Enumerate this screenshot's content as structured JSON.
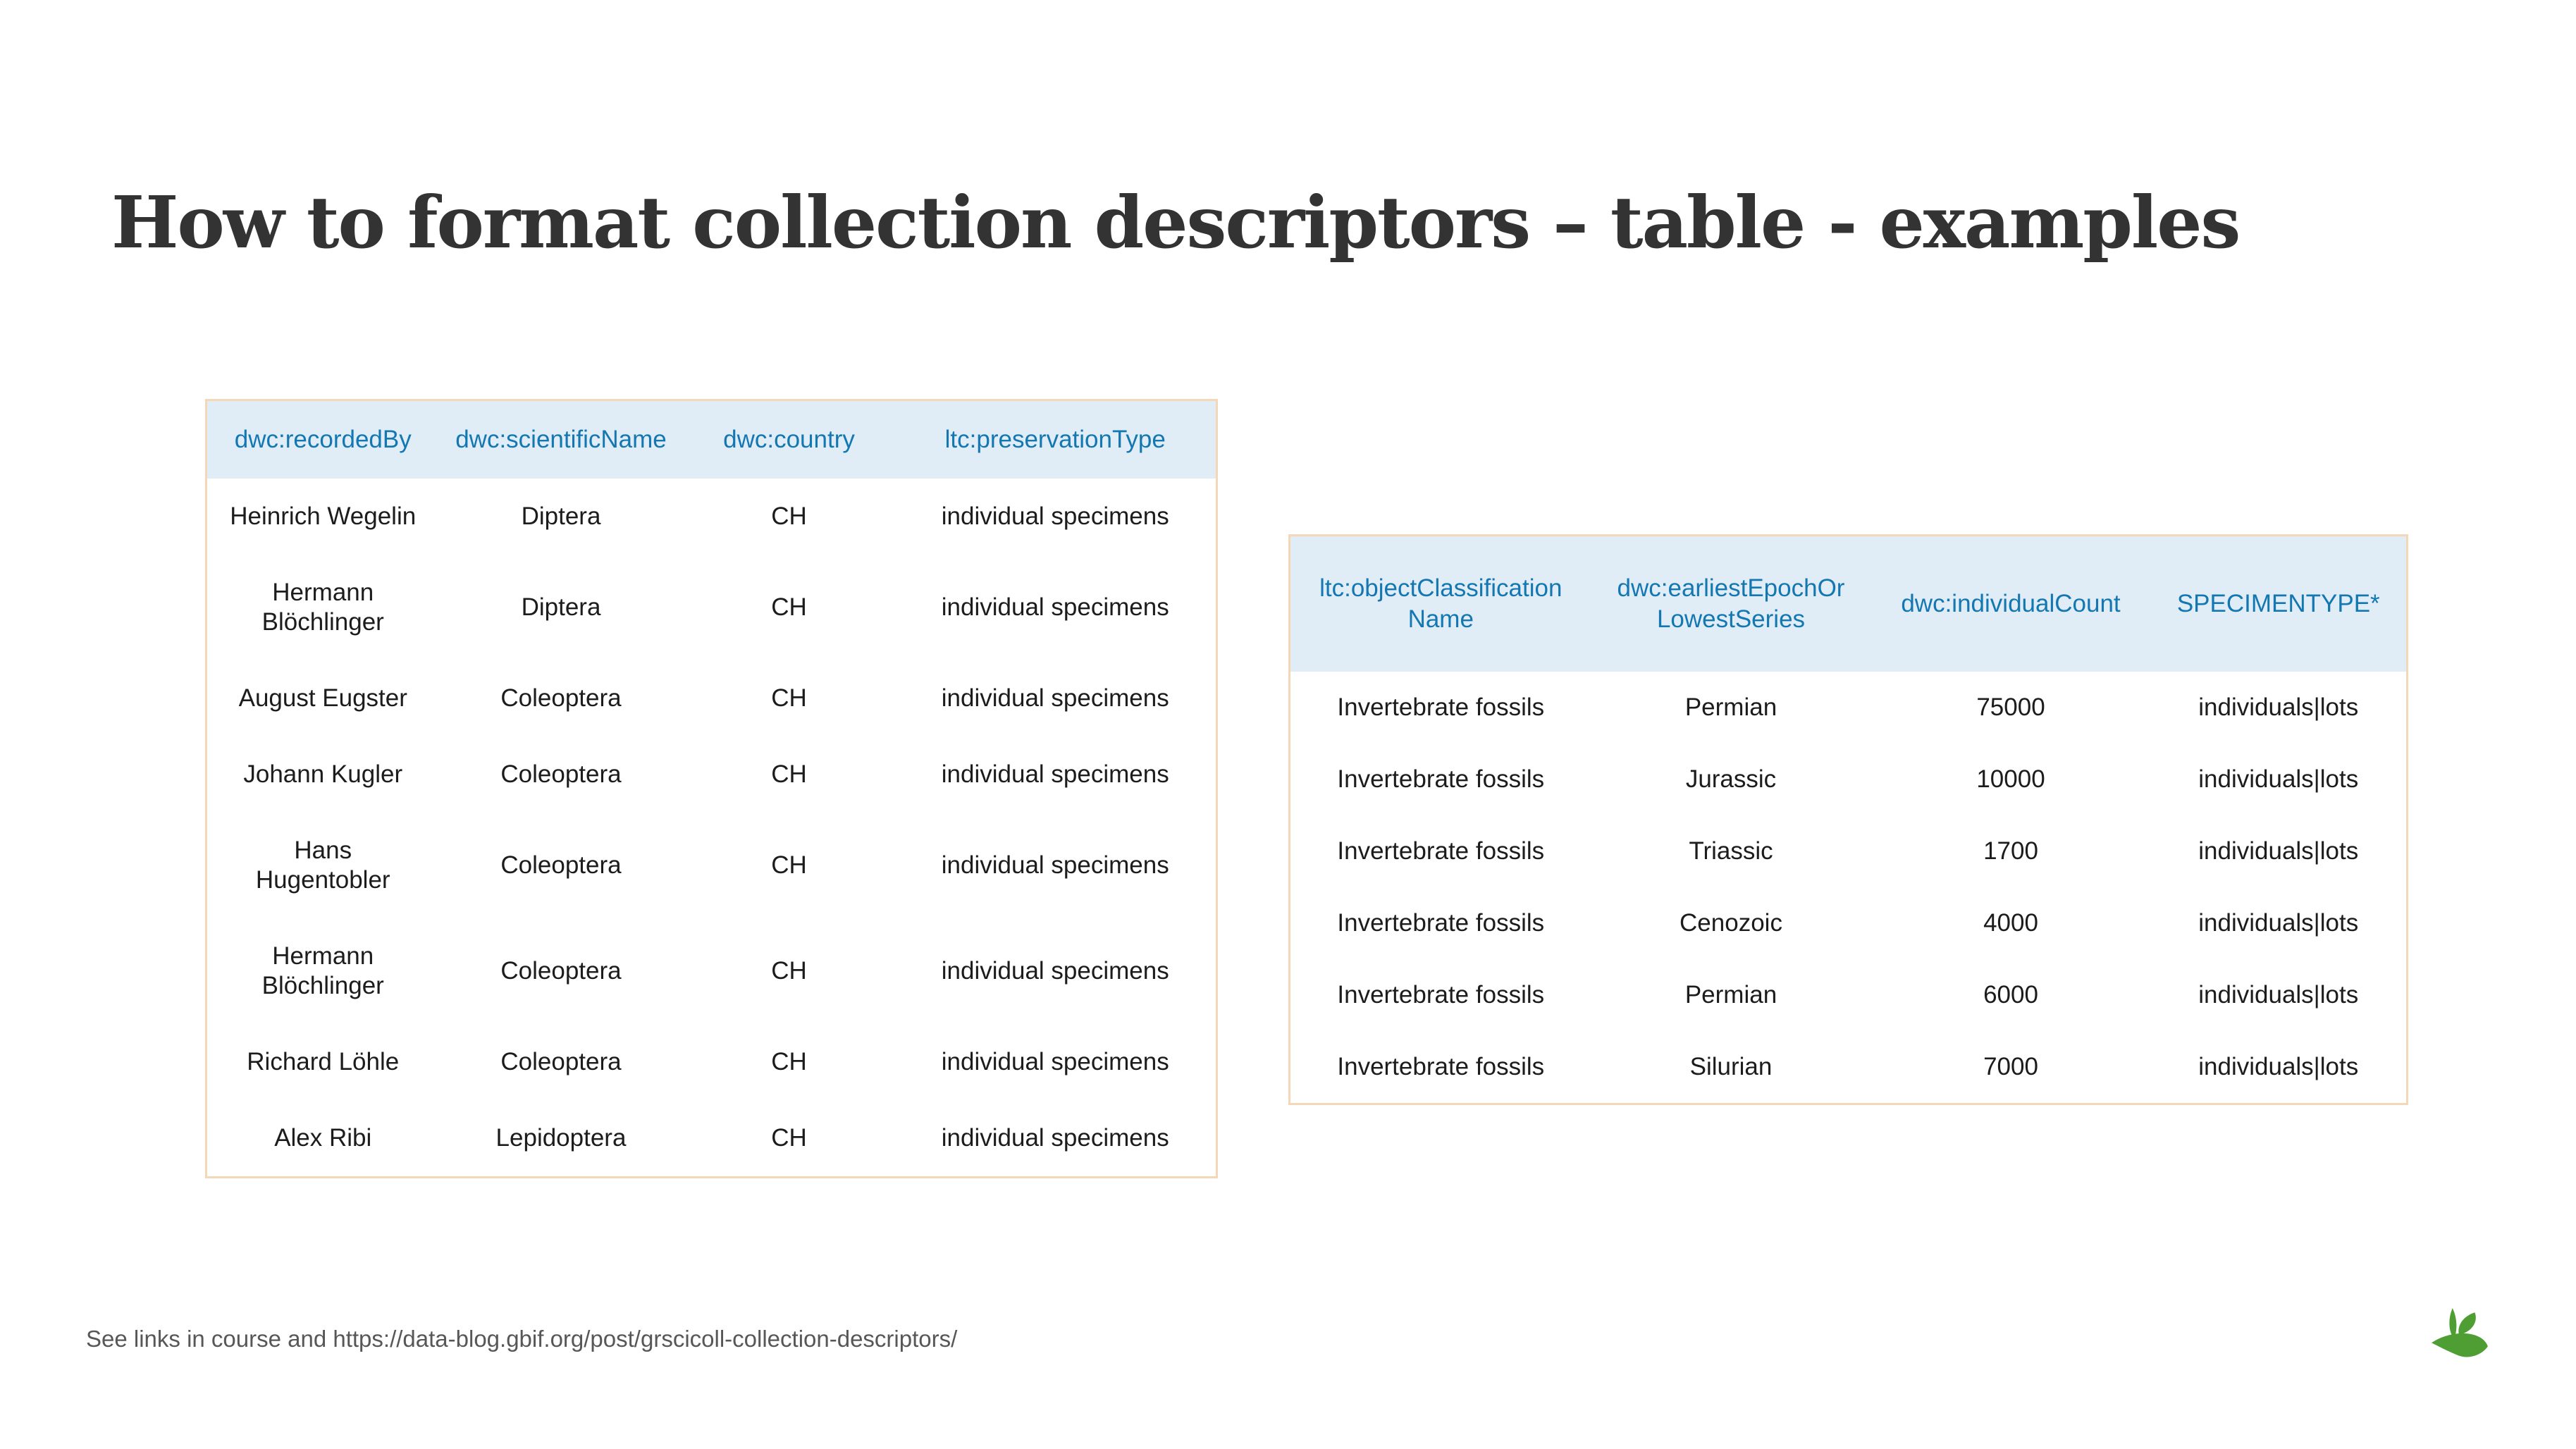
{
  "slide": {
    "title": "How to format collection descriptors – table - examples",
    "footer_note": "See links in course and https://data-blog.gbif.org/post/grscicoll-collection-descriptors/"
  },
  "colors": {
    "header_text_blue": "#1377b2",
    "header_bg_blue": "#e1edf6",
    "table_border_tan": "#f3d7b7",
    "body_text": "#1c1c1c",
    "title_text": "#333333",
    "footer_text": "#575757",
    "logo_green": "#4f9e33",
    "background": "#ffffff"
  },
  "icons": {
    "logo": "green-sprout-logo"
  },
  "left_table": {
    "headers": [
      "dwc:recordedBy",
      "dwc:scientificName",
      "dwc:country",
      "ltc:preservationType"
    ],
    "rows": [
      [
        "Heinrich Wegelin",
        "Diptera",
        "CH",
        "individual specimens"
      ],
      [
        "Hermann\nBlöchlinger",
        "Diptera",
        "CH",
        "individual specimens"
      ],
      [
        "August Eugster",
        "Coleoptera",
        "CH",
        "individual specimens"
      ],
      [
        "Johann Kugler",
        "Coleoptera",
        "CH",
        "individual specimens"
      ],
      [
        "Hans\nHugentobler",
        "Coleoptera",
        "CH",
        "individual specimens"
      ],
      [
        "Hermann\nBlöchlinger",
        "Coleoptera",
        "CH",
        "individual specimens"
      ],
      [
        "Richard Löhle",
        "Coleoptera",
        "CH",
        "individual specimens"
      ],
      [
        "Alex Ribi",
        "Lepidoptera",
        "CH",
        "individual specimens"
      ]
    ]
  },
  "right_table": {
    "headers": [
      "ltc:objectClassification Name",
      "dwc:earliestEpochOr LowestSeries",
      "dwc:individualCount",
      "SPECIMENTYPE*"
    ],
    "rows": [
      [
        "Invertebrate fossils",
        "Permian",
        "75000",
        "individuals|lots"
      ],
      [
        "Invertebrate fossils",
        "Jurassic",
        "10000",
        "individuals|lots"
      ],
      [
        "Invertebrate fossils",
        "Triassic",
        "1700",
        "individuals|lots"
      ],
      [
        "Invertebrate fossils",
        "Cenozoic",
        "4000",
        "individuals|lots"
      ],
      [
        "Invertebrate fossils",
        "Permian",
        "6000",
        "individuals|lots"
      ],
      [
        "Invertebrate fossils",
        "Silurian",
        "7000",
        "individuals|lots"
      ]
    ]
  }
}
